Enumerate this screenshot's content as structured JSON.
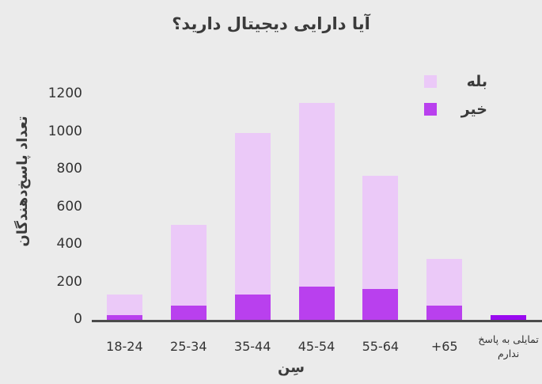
{
  "chart_data": {
    "type": "bar",
    "stacked": true,
    "title": "آیا دارایی دیجیتال دارید؟",
    "xlabel": "سِن",
    "ylabel": "تعداد پاسخ‌دهندگان",
    "categories": [
      "18-24",
      "25-34",
      "35-44",
      "45-54",
      "55-64",
      "65+",
      "تمایلی به پاسخ ندارم"
    ],
    "series": [
      {
        "key": "yes",
        "name": "بله",
        "color": "#ebc9f8",
        "in_legend": true,
        "values": [
          110,
          430,
          860,
          980,
          600,
          250,
          0
        ]
      },
      {
        "key": "no",
        "name": "خیر",
        "color": "#b940ee",
        "in_legend": true,
        "values": [
          30,
          80,
          140,
          180,
          170,
          80,
          0
        ]
      },
      {
        "key": "no-answer",
        "name": "تمایلی به پاسخ ندارم",
        "color": "#9a0af0",
        "in_legend": false,
        "values": [
          0,
          0,
          0,
          0,
          0,
          0,
          30
        ]
      }
    ],
    "ylim": [
      0,
      1200
    ],
    "yticks": [
      0,
      200,
      400,
      600,
      800,
      1000,
      1200
    ],
    "legend_position": "top-right",
    "grid": false,
    "background_color": "#ebebeb",
    "axis_line_color": "#4b4b4b",
    "text_color": "#333333"
  }
}
